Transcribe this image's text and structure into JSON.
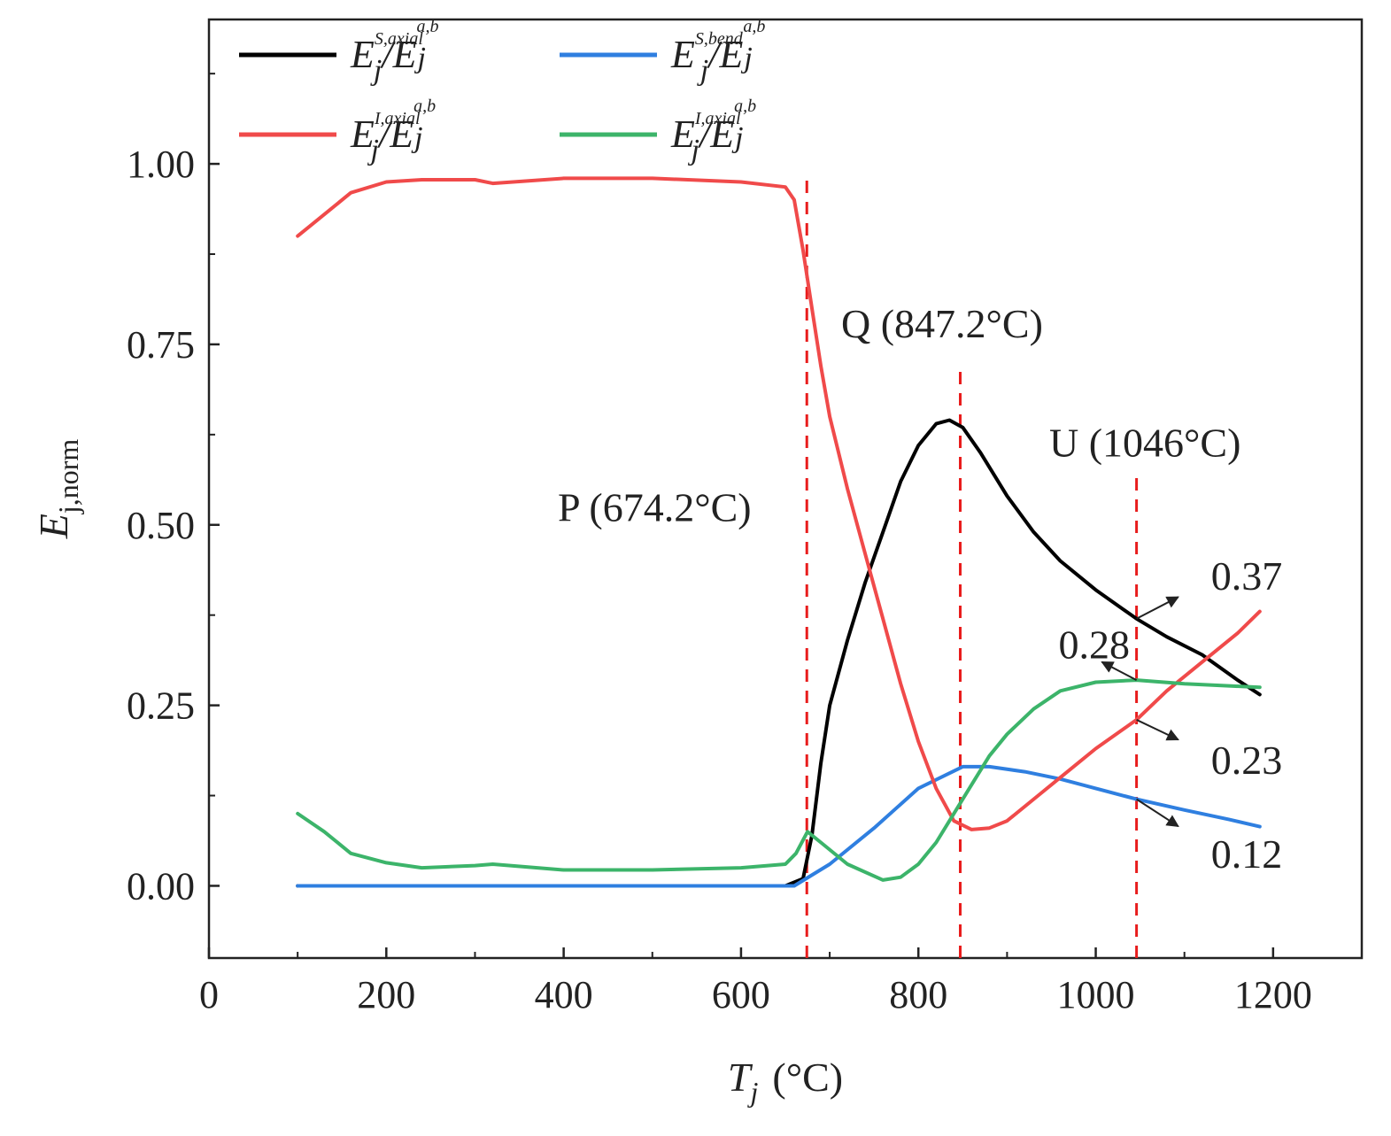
{
  "chart_data": {
    "type": "line",
    "xlabel": {
      "main": "T",
      "sub": "j",
      "unit": "(°C)"
    },
    "ylabel": {
      "main": "E",
      "sub": "j,norm"
    },
    "xlim": [
      0,
      1300
    ],
    "ylim": [
      -0.1,
      1.2
    ],
    "xticks": [
      0,
      200,
      400,
      600,
      800,
      1000,
      1200
    ],
    "xtick_labels": [
      "0",
      "200",
      "400",
      "600",
      "800",
      "1000",
      "1200"
    ],
    "yticks": [
      0.0,
      0.25,
      0.5,
      0.75,
      1.0
    ],
    "ytick_labels": [
      "0.00",
      "0.25",
      "0.50",
      "0.75",
      "1.00"
    ],
    "series": [
      {
        "name": "E_j^S,axial/E_j^a,b",
        "legend": {
          "num": "E",
          "num_sup": "S,axial",
          "den": "E",
          "den_sup": "a,b",
          "sub": "j"
        },
        "color": "#000000",
        "x": [
          100,
          650,
          670,
          680,
          690,
          700,
          720,
          740,
          760,
          780,
          800,
          820,
          835,
          850,
          870,
          900,
          930,
          960,
          1000,
          1046,
          1080,
          1120,
          1160,
          1185
        ],
        "y": [
          0,
          0,
          0.01,
          0.07,
          0.17,
          0.25,
          0.34,
          0.42,
          0.49,
          0.56,
          0.61,
          0.64,
          0.645,
          0.635,
          0.6,
          0.54,
          0.49,
          0.45,
          0.41,
          0.37,
          0.345,
          0.32,
          0.285,
          0.265
        ]
      },
      {
        "name": "E_j^S,bend/E_j^a,b",
        "legend": {
          "num": "E",
          "num_sup": "S,bend",
          "den": "E",
          "den_sup": "a,b",
          "sub": "j"
        },
        "color": "#2f7fe0",
        "x": [
          100,
          660,
          700,
          750,
          800,
          850,
          880,
          920,
          960,
          1000,
          1046,
          1100,
          1150,
          1185
        ],
        "y": [
          0,
          0,
          0.03,
          0.08,
          0.135,
          0.165,
          0.165,
          0.158,
          0.148,
          0.135,
          0.12,
          0.105,
          0.092,
          0.082
        ]
      },
      {
        "name": "E_j^I,axial/E_j^a,b",
        "legend": {
          "num": "E",
          "num_sup": "I,axial",
          "den": "E",
          "den_sup": "a,b",
          "sub": "j"
        },
        "color": "#f04a4a",
        "x": [
          100,
          130,
          160,
          200,
          240,
          300,
          320,
          400,
          500,
          600,
          650,
          660,
          670,
          680,
          690,
          700,
          720,
          740,
          760,
          780,
          800,
          820,
          840,
          860,
          880,
          900,
          940,
          980,
          1000,
          1046,
          1080,
          1120,
          1160,
          1185
        ],
        "y": [
          0.9,
          0.93,
          0.96,
          0.975,
          0.978,
          0.978,
          0.973,
          0.98,
          0.98,
          0.975,
          0.968,
          0.95,
          0.88,
          0.8,
          0.72,
          0.65,
          0.55,
          0.46,
          0.37,
          0.28,
          0.2,
          0.135,
          0.09,
          0.078,
          0.08,
          0.09,
          0.13,
          0.17,
          0.19,
          0.23,
          0.27,
          0.31,
          0.35,
          0.38
        ]
      },
      {
        "name": "E_j^I,axial/E_j^a,b",
        "legend": {
          "num": "E",
          "num_sup": "I,axial",
          "den": "E",
          "den_sup": "a,b",
          "sub": "j"
        },
        "color": "#3cb46a",
        "x": [
          100,
          130,
          160,
          200,
          240,
          300,
          320,
          400,
          500,
          600,
          650,
          662,
          675,
          690,
          720,
          760,
          780,
          800,
          820,
          840,
          860,
          880,
          900,
          930,
          960,
          1000,
          1046,
          1100,
          1150,
          1185
        ],
        "y": [
          0.1,
          0.075,
          0.045,
          0.032,
          0.025,
          0.028,
          0.03,
          0.022,
          0.022,
          0.025,
          0.03,
          0.045,
          0.075,
          0.06,
          0.03,
          0.008,
          0.012,
          0.03,
          0.06,
          0.1,
          0.14,
          0.18,
          0.21,
          0.245,
          0.27,
          0.282,
          0.285,
          0.28,
          0.277,
          0.275
        ]
      }
    ],
    "vlines": [
      {
        "x": 674.2,
        "y_top": 0.98,
        "label": "P (674.2°C)",
        "color": "#e81c1c"
      },
      {
        "x": 847.2,
        "y_top": 0.72,
        "label": "Q (847.2°C)",
        "color": "#e81c1c"
      },
      {
        "x": 1046,
        "y_top": 0.57,
        "label": "U (1046°C)",
        "color": "#e81c1c"
      }
    ],
    "annotations": [
      {
        "text": "0.37",
        "point": [
          1046,
          0.37
        ],
        "text_at": [
          1140,
          0.43
        ]
      },
      {
        "text": "0.28",
        "point": [
          1046,
          0.285
        ],
        "text_at": [
          968,
          0.335
        ]
      },
      {
        "text": "0.23",
        "point": [
          1046,
          0.23
        ],
        "text_at": [
          1140,
          0.175
        ]
      },
      {
        "text": "0.12",
        "point": [
          1046,
          0.12
        ],
        "text_at": [
          1140,
          0.045
        ]
      }
    ],
    "legend_position": "top-left"
  }
}
